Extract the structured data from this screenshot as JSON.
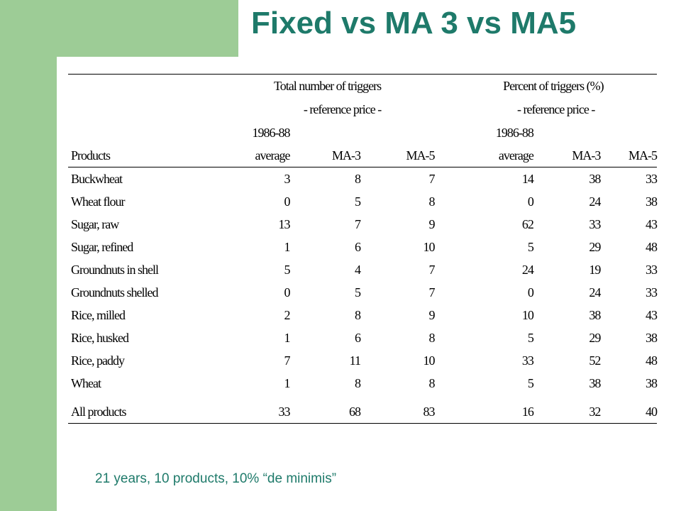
{
  "title": "Fixed vs MA 3 vs MA5",
  "table": {
    "group_headers": [
      {
        "line1": "Total number of triggers",
        "line2": "- reference price -"
      },
      {
        "line1": "Percent of triggers (%)",
        "line2": "- reference price -"
      }
    ],
    "col_top": [
      "1986-88",
      "1986-88"
    ],
    "columns": [
      "Products",
      "average",
      "MA-3",
      "MA-5",
      "average",
      "MA-3",
      "MA-5"
    ],
    "rows": [
      {
        "product": "Buckwheat",
        "values": [
          "3",
          "8",
          "7",
          "14",
          "38",
          "33"
        ]
      },
      {
        "product": "Wheat flour",
        "values": [
          "0",
          "5",
          "8",
          "0",
          "24",
          "38"
        ]
      },
      {
        "product": "Sugar, raw",
        "values": [
          "13",
          "7",
          "9",
          "62",
          "33",
          "43"
        ]
      },
      {
        "product": "Sugar, refined",
        "values": [
          "1",
          "6",
          "10",
          "5",
          "29",
          "48"
        ]
      },
      {
        "product": "Groundnuts in shell",
        "values": [
          "5",
          "4",
          "7",
          "24",
          "19",
          "33"
        ]
      },
      {
        "product": "Groundnuts shelled",
        "values": [
          "0",
          "5",
          "7",
          "0",
          "24",
          "33"
        ]
      },
      {
        "product": "Rice, milled",
        "values": [
          "2",
          "8",
          "9",
          "10",
          "38",
          "43"
        ]
      },
      {
        "product": "Rice, husked",
        "values": [
          "1",
          "6",
          "8",
          "5",
          "29",
          "38"
        ]
      },
      {
        "product": "Rice, paddy",
        "values": [
          "7",
          "11",
          "10",
          "33",
          "52",
          "48"
        ]
      },
      {
        "product": "Wheat",
        "values": [
          "1",
          "8",
          "8",
          "5",
          "38",
          "38"
        ]
      }
    ],
    "total": {
      "product": "All products",
      "values": [
        "33",
        "68",
        "83",
        "16",
        "32",
        "40"
      ]
    }
  },
  "footnote": "21 years, 10 products, 10% “de minimis”",
  "colors": {
    "green_band": "#9dcc96",
    "title": "#1e7a6a"
  }
}
